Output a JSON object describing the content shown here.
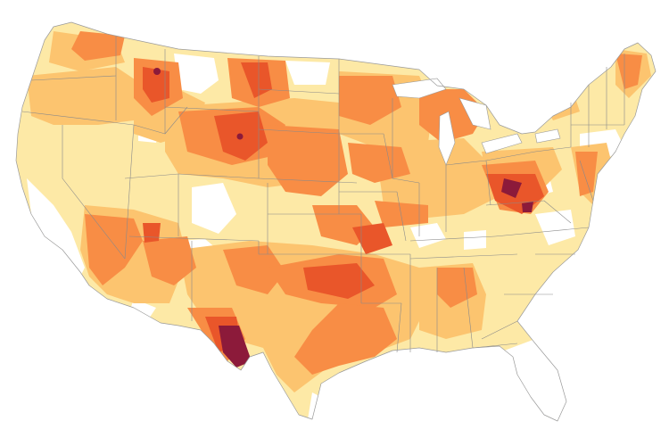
{
  "map": {
    "region": "contiguous-united-states",
    "palette": {
      "none": "#ffffff",
      "level1": "#fde9a6",
      "level2": "#fcc46f",
      "level3": "#f88d45",
      "level4": "#e9562a",
      "level5": "#8c1a3a",
      "border": "#8a8a8a"
    }
  }
}
